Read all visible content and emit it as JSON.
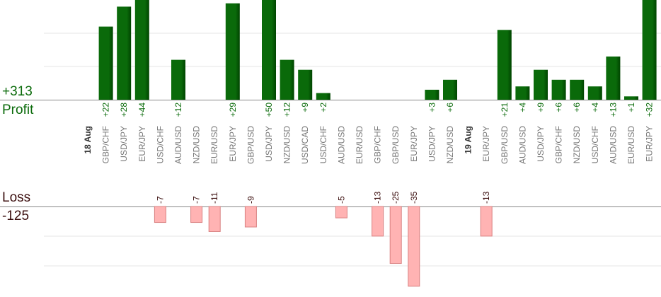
{
  "summary": {
    "profit_total": "+313",
    "profit_label": "Profit",
    "loss_label": "Loss",
    "loss_total": "-125"
  },
  "colors": {
    "profit_bar": "#0a6a0a",
    "profit_bar_edge": "#004400",
    "profit_text": "#0b6b0b",
    "loss_bar": "#ffb3b3",
    "loss_bar_edge": "#d98080",
    "loss_text": "#3a0d0d",
    "category_text": "#777777",
    "date_text": "#333333",
    "grid": "#e6e6e6",
    "baseline": "#888888"
  },
  "chart_data": {
    "type": "bar",
    "categories": [
      "GBP/CHF",
      "USD/JPY",
      "EUR/JPY",
      "USD/CHF",
      "AUD/USD",
      "NZD/USD",
      "EUR/USD",
      "EUR/JPY",
      "GBP/USD",
      "USD/JPY",
      "NZD/USD",
      "USD/CAD",
      "USD/CHF",
      "AUD/USD",
      "EUR/USD",
      "GBP/CHF",
      "GBP/USD",
      "EUR/JPY",
      "USD/JPY",
      "NZD/USD",
      "EUR/JPY",
      "GBP/USD",
      "AUD/USD",
      "USD/JPY",
      "GBP/CHF",
      "NZD/USD",
      "USD/CHF",
      "AUD/USD",
      "EUR/USD",
      "EUR/JPY"
    ],
    "date_markers": [
      {
        "label": "18 Aug",
        "before_index": 0
      },
      {
        "label": "19 Aug",
        "before_index": 20
      }
    ],
    "series": [
      {
        "values": [
          22,
          28,
          44,
          null,
          12,
          null,
          null,
          29,
          null,
          50,
          12,
          9,
          2,
          null,
          null,
          null,
          null,
          null,
          3,
          6,
          null,
          21,
          4,
          9,
          6,
          6,
          4,
          13,
          1,
          32
        ],
        "labels": [
          "+22",
          "+28",
          "+44",
          "",
          "+12",
          "",
          "",
          "+29",
          "",
          "+50",
          "+12",
          "+9",
          "+2",
          "",
          "",
          "",
          "",
          "",
          "+3",
          "+6",
          "",
          "+21",
          "+4",
          "+9",
          "+6",
          "+6",
          "+4",
          "+13",
          "+1",
          "+32"
        ]
      },
      {
        "values": [
          null,
          null,
          null,
          -7,
          null,
          -7,
          -11,
          null,
          -9,
          null,
          null,
          null,
          null,
          -5,
          null,
          -13,
          -25,
          -35,
          null,
          null,
          -13,
          null,
          null,
          null,
          null,
          null,
          null,
          null,
          null,
          null
        ],
        "labels": [
          "",
          "",
          "",
          "-7",
          "",
          "-7",
          "-11",
          "",
          "-9",
          "",
          "",
          "",
          "",
          "-5",
          "",
          "-13",
          "-25",
          "-35",
          "",
          "",
          "-13",
          "",
          "",
          "",
          "",
          "",
          "",
          "",
          "",
          ""
        ]
      }
    ],
    "ylim_profit": [
      0,
      30
    ],
    "ylim_loss": [
      -36,
      0
    ],
    "grid": true
  }
}
